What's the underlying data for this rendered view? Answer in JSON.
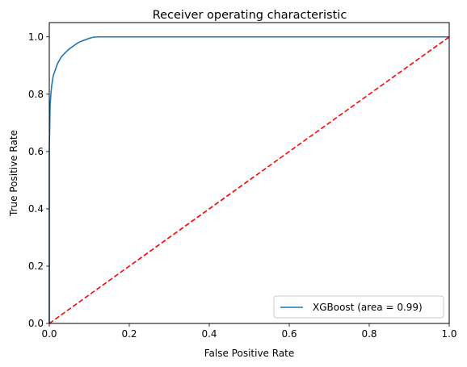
{
  "chart_data": {
    "type": "line",
    "title": "Receiver operating characteristic",
    "xlabel": "False Positive Rate",
    "ylabel": "True Positive Rate",
    "xlim": [
      0,
      1
    ],
    "ylim": [
      0,
      1.05
    ],
    "xticks": [
      0.0,
      0.2,
      0.4,
      0.6,
      0.8,
      1.0
    ],
    "xtick_labels": [
      "0.0",
      "0.2",
      "0.4",
      "0.6",
      "0.8",
      "1.0"
    ],
    "yticks": [
      0.0,
      0.2,
      0.4,
      0.6,
      0.8,
      1.0
    ],
    "ytick_labels": [
      "0.0",
      "0.2",
      "0.4",
      "0.6",
      "0.8",
      "1.0"
    ],
    "grid": false,
    "legend_position": "lower-right",
    "series": [
      {
        "name": "XGBoost (area = 0.99)",
        "color": "#1f77b4",
        "style": "solid",
        "in_legend": true,
        "x": [
          0.0,
          0.0,
          0.002,
          0.004,
          0.006,
          0.01,
          0.015,
          0.02,
          0.03,
          0.04,
          0.05,
          0.06,
          0.07,
          0.08,
          0.09,
          0.1,
          0.11,
          0.12,
          0.15,
          0.2,
          0.3,
          0.4,
          0.5,
          0.6,
          0.7,
          0.8,
          0.9,
          1.0
        ],
        "y": [
          0.0,
          0.6,
          0.76,
          0.8,
          0.83,
          0.865,
          0.885,
          0.905,
          0.93,
          0.945,
          0.958,
          0.968,
          0.978,
          0.985,
          0.99,
          0.995,
          0.999,
          1.0,
          1.0,
          1.0,
          1.0,
          1.0,
          1.0,
          1.0,
          1.0,
          1.0,
          1.0,
          1.0
        ]
      },
      {
        "name": "",
        "color": "#ff0000",
        "style": "dashed",
        "in_legend": false,
        "x": [
          0.0,
          1.0
        ],
        "y": [
          0.0,
          1.0
        ]
      }
    ]
  }
}
